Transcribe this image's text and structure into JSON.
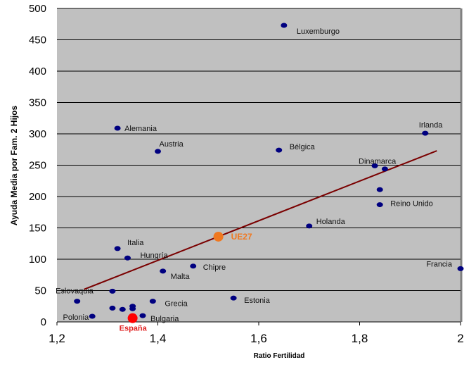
{
  "chart_data": {
    "type": "scatter",
    "title": "",
    "xlabel": "Ratio Fertilidad",
    "ylabel": "Ayuda Media por Fam. 2 Hijos",
    "xlim": [
      1.2,
      2.0
    ],
    "ylim": [
      0,
      500
    ],
    "xticks": [
      1.2,
      1.4,
      1.6,
      1.8,
      2.0
    ],
    "xtick_labels": [
      "1,2",
      "1,4",
      "1,6",
      "1,8",
      "2"
    ],
    "yticks": [
      0,
      50,
      100,
      150,
      200,
      250,
      300,
      350,
      400,
      450,
      500
    ],
    "ytick_labels": [
      "0",
      "50",
      "100",
      "150",
      "200",
      "250",
      "300",
      "350",
      "400",
      "450",
      "500"
    ],
    "grid": "horizontal",
    "colors": {
      "point": "#000080",
      "highlight_ue": "#f07820",
      "highlight_es": "#ff0000",
      "trend": "#7a0000",
      "background": "#c0c0c0"
    },
    "points": [
      {
        "label": "Luxemburgo",
        "x": 1.65,
        "y": 473
      },
      {
        "label": "Alemania",
        "x": 1.32,
        "y": 309
      },
      {
        "label": "Austria",
        "x": 1.4,
        "y": 272
      },
      {
        "label": "Bélgica",
        "x": 1.64,
        "y": 274
      },
      {
        "label": "Irlanda",
        "x": 1.93,
        "y": 301
      },
      {
        "label": "Dinamarca",
        "x": 1.83,
        "y": 249
      },
      {
        "label": "",
        "x": 1.85,
        "y": 244
      },
      {
        "label": "",
        "x": 1.84,
        "y": 211
      },
      {
        "label": "Reino Unido",
        "x": 1.84,
        "y": 187
      },
      {
        "label": "Holanda",
        "x": 1.7,
        "y": 153
      },
      {
        "label": "UE27",
        "x": 1.52,
        "y": 136,
        "highlight": "ue"
      },
      {
        "label": "Francia",
        "x": 2.0,
        "y": 85
      },
      {
        "label": "Italia",
        "x": 1.32,
        "y": 117
      },
      {
        "label": "Hungría",
        "x": 1.34,
        "y": 102
      },
      {
        "label": "Chipre",
        "x": 1.47,
        "y": 89
      },
      {
        "label": "Malta",
        "x": 1.41,
        "y": 81
      },
      {
        "label": "Eslovaquia",
        "x": 1.31,
        "y": 49
      },
      {
        "label": "Estonia",
        "x": 1.55,
        "y": 38
      },
      {
        "label": "",
        "x": 1.24,
        "y": 33
      },
      {
        "label": "Grecia",
        "x": 1.39,
        "y": 33
      },
      {
        "label": "",
        "x": 1.31,
        "y": 22
      },
      {
        "label": "",
        "x": 1.33,
        "y": 20
      },
      {
        "label": "",
        "x": 1.35,
        "y": 25
      },
      {
        "label": "",
        "x": 1.35,
        "y": 21
      },
      {
        "label": "Polonia",
        "x": 1.27,
        "y": 9
      },
      {
        "label": "Bulgaria",
        "x": 1.37,
        "y": 10
      },
      {
        "label": "España",
        "x": 1.35,
        "y": 6,
        "highlight": "es"
      }
    ],
    "trendline": {
      "x": [
        1.254,
        1.953
      ],
      "y": [
        52,
        273
      ]
    }
  }
}
